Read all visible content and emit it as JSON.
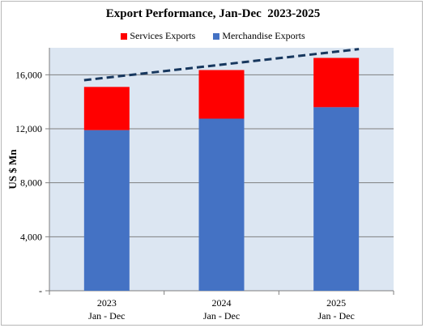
{
  "chart_data": {
    "type": "bar",
    "stacked": true,
    "title": "Export Performance, Jan-Dec  2023-2025",
    "ylabel": "US $ Mn",
    "xlabel": "",
    "categories": [
      {
        "year": "2023",
        "period": "Jan - Dec"
      },
      {
        "year": "2024",
        "period": "Jan - Dec"
      },
      {
        "year": "2025",
        "period": "Jan - Dec"
      }
    ],
    "series": [
      {
        "name": "Merchandise Exports",
        "color": "#4472c4",
        "values": [
          11900,
          12750,
          13600
        ]
      },
      {
        "name": "Services Exports",
        "color": "#ff0000",
        "values": [
          3200,
          3600,
          3650
        ]
      }
    ],
    "trend_line": {
      "style": "dashed",
      "color": "#17375e",
      "start": 15600,
      "end": 17900
    },
    "ylim": [
      0,
      18000
    ],
    "yticks": [
      {
        "value": 0,
        "label": "-"
      },
      {
        "value": 4000,
        "label": "4,000"
      },
      {
        "value": 8000,
        "label": "8,000"
      },
      {
        "value": 12000,
        "label": "12,000"
      },
      {
        "value": 16000,
        "label": "16,000"
      }
    ],
    "grid": true,
    "legend_position": "top",
    "plot_background": "#dce6f2"
  }
}
